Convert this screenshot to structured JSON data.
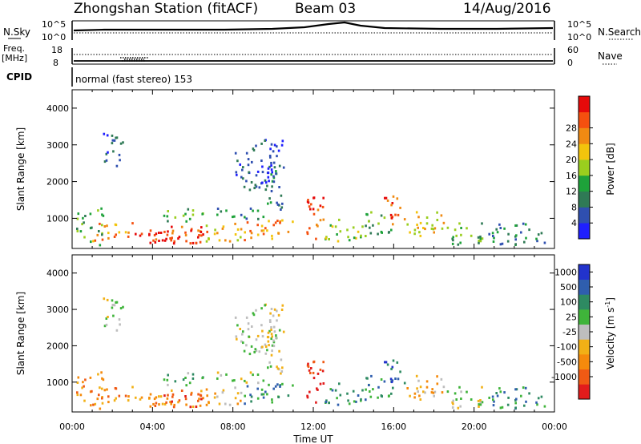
{
  "header": {
    "station": "Zhongshan Station (fitACF)",
    "beam": "Beam 03",
    "date": "14/Aug/2016"
  },
  "noise_panel": {
    "left_label": "N.Sky",
    "right_label": "N.Search",
    "left_ticks": [
      "10^5",
      "10^0"
    ],
    "right_ticks": [
      "10^5",
      "10^0"
    ]
  },
  "freq_panel": {
    "left_label": "Freq.",
    "left_unit": "[MHz]",
    "left_ticks": [
      "18",
      "8"
    ],
    "right_label": "Nave",
    "right_ticks": [
      "60",
      "0"
    ]
  },
  "cpid": {
    "label": "CPID",
    "mode": "normal (fast stereo) 153"
  },
  "colors": {
    "power": [
      "#1f1fff",
      "#2f4fb0",
      "#2f7a55",
      "#1ea23a",
      "#9ace1e",
      "#f2c40c",
      "#f08a12",
      "#f5500f",
      "#e60a0a"
    ],
    "velocity": [
      "#e21c1c",
      "#f05a14",
      "#f58a0c",
      "#f2b016",
      "#bebebe",
      "#3fb43a",
      "#2e8a62",
      "#2f5eae",
      "#2233cc"
    ]
  },
  "chart_data": {
    "type": "heatmap",
    "x_axis": {
      "label": "Time UT",
      "range_hours": [
        0,
        24
      ],
      "ticks": [
        "00:00",
        "04:00",
        "08:00",
        "12:00",
        "16:00",
        "20:00",
        "00:00"
      ]
    },
    "panels": [
      {
        "name": "Power",
        "ylabel": "Slant Range [km]",
        "ylim": [
          180,
          4500
        ],
        "yticks": [
          1000,
          2000,
          3000,
          4000
        ],
        "colorbar": {
          "label": "Power [dB]",
          "ticks": [
            "4",
            "8",
            "12",
            "16",
            "20",
            "24",
            "28"
          ]
        }
      },
      {
        "name": "Velocity",
        "ylabel": "Slant Range [km]",
        "ylim": [
          180,
          4500
        ],
        "yticks": [
          1000,
          2000,
          3000,
          4000
        ],
        "colorbar": {
          "label": "Velocity [m s",
          "unit_sup": "-1",
          "label_end": "]",
          "ticks": [
            "1000",
            "500",
            "100",
            "25",
            "-25",
            "-100",
            "-500",
            "-1000"
          ]
        }
      }
    ],
    "scatter_regions": [
      {
        "t": [
          0.2,
          1.5
        ],
        "r": [
          300,
          1300
        ],
        "p": 3,
        "v": 2
      },
      {
        "t": [
          1.0,
          3.0
        ],
        "r": [
          400,
          900
        ],
        "p": 6,
        "v": 2
      },
      {
        "t": [
          3.0,
          7.0
        ],
        "r": [
          350,
          800
        ],
        "p": 7,
        "v": 2
      },
      {
        "t": [
          3.5,
          6.5
        ],
        "r": [
          350,
          700
        ],
        "p": 8,
        "v": 1
      },
      {
        "t": [
          4.5,
          6.5
        ],
        "r": [
          900,
          1300
        ],
        "p": 3,
        "v": 5
      },
      {
        "t": [
          6.5,
          8.5
        ],
        "r": [
          400,
          900
        ],
        "p": 5,
        "v": 3
      },
      {
        "t": [
          7.0,
          9.5
        ],
        "r": [
          1000,
          1300
        ],
        "p": 2,
        "v": 4
      },
      {
        "t": [
          8.5,
          11.0
        ],
        "r": [
          400,
          1000
        ],
        "p": 6,
        "v": 6
      },
      {
        "t": [
          9.5,
          10.5
        ],
        "r": [
          1200,
          2500
        ],
        "p": 2,
        "v": 4
      },
      {
        "t": [
          1.5,
          2.5
        ],
        "r": [
          2400,
          3400
        ],
        "p": 1,
        "v": 4
      },
      {
        "t": [
          8.0,
          10.5
        ],
        "r": [
          1800,
          3200
        ],
        "p": 1,
        "v": 4
      },
      {
        "t": [
          11.5,
          12.5
        ],
        "r": [
          400,
          1600
        ],
        "p": 7,
        "v": 0
      },
      {
        "t": [
          12.5,
          14.5
        ],
        "r": [
          400,
          1000
        ],
        "p": 4,
        "v": 6
      },
      {
        "t": [
          14.5,
          16.0
        ],
        "r": [
          500,
          1200
        ],
        "p": 3,
        "v": 6
      },
      {
        "t": [
          15.5,
          16.5
        ],
        "r": [
          800,
          1700
        ],
        "p": 7,
        "v": 7
      },
      {
        "t": [
          16.5,
          18.5
        ],
        "r": [
          500,
          1200
        ],
        "p": 5,
        "v": 3
      },
      {
        "t": [
          18.5,
          20.5
        ],
        "r": [
          300,
          900
        ],
        "p": 3,
        "v": 4
      },
      {
        "t": [
          20.5,
          23.5
        ],
        "r": [
          300,
          900
        ],
        "p": 2,
        "v": 6
      }
    ]
  }
}
